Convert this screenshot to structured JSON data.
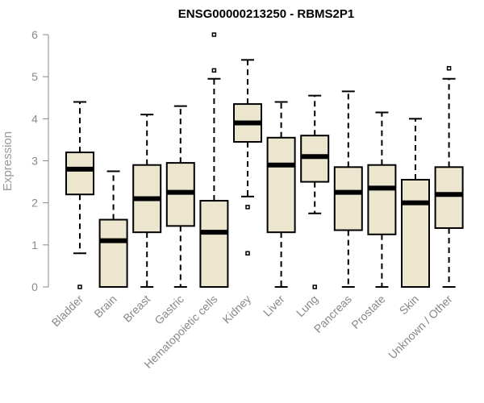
{
  "chart_data": {
    "type": "box",
    "title": "ENSG00000213250 - RBMS2P1",
    "xlabel": "",
    "ylabel": "Expression",
    "ylim": [
      0,
      6
    ],
    "yticks": [
      "0",
      "1",
      "2",
      "3",
      "4",
      "5",
      "6"
    ],
    "grid": false,
    "colors": {
      "box_fill": "#ede6cf",
      "stroke": "#000000",
      "axis": "#888888"
    },
    "categories": [
      "Bladder",
      "Brain",
      "Breast",
      "Gastric",
      "Hematopoietic cells",
      "Kidney",
      "Liver",
      "Lung",
      "Pancreas",
      "Prostate",
      "Skin",
      "Unknown / Other"
    ],
    "boxes": [
      {
        "name": "Bladder",
        "whisker_low": 0.8,
        "q1": 2.2,
        "median": 2.8,
        "q3": 3.2,
        "whisker_high": 4.4,
        "outliers": [
          0.0
        ]
      },
      {
        "name": "Brain",
        "whisker_low": 0.0,
        "q1": 0.0,
        "median": 1.1,
        "q3": 1.6,
        "whisker_high": 2.75,
        "outliers": []
      },
      {
        "name": "Breast",
        "whisker_low": 0.0,
        "q1": 1.3,
        "median": 2.1,
        "q3": 2.9,
        "whisker_high": 4.1,
        "outliers": []
      },
      {
        "name": "Gastric",
        "whisker_low": 0.0,
        "q1": 1.45,
        "median": 2.25,
        "q3": 2.95,
        "whisker_high": 4.3,
        "outliers": []
      },
      {
        "name": "Hematopoietic cells",
        "whisker_low": 0.0,
        "q1": 0.0,
        "median": 1.3,
        "q3": 2.05,
        "whisker_high": 4.95,
        "outliers": [
          5.15,
          6.0
        ]
      },
      {
        "name": "Kidney",
        "whisker_low": 2.15,
        "q1": 3.45,
        "median": 3.9,
        "q3": 4.35,
        "whisker_high": 5.4,
        "outliers": [
          1.9,
          0.8
        ]
      },
      {
        "name": "Liver",
        "whisker_low": 0.0,
        "q1": 1.3,
        "median": 2.9,
        "q3": 3.55,
        "whisker_high": 4.4,
        "outliers": []
      },
      {
        "name": "Lung",
        "whisker_low": 1.75,
        "q1": 2.5,
        "median": 3.1,
        "q3": 3.6,
        "whisker_high": 4.55,
        "outliers": [
          0.0
        ]
      },
      {
        "name": "Pancreas",
        "whisker_low": 0.0,
        "q1": 1.35,
        "median": 2.25,
        "q3": 2.85,
        "whisker_high": 4.65,
        "outliers": []
      },
      {
        "name": "Prostate",
        "whisker_low": 0.0,
        "q1": 1.25,
        "median": 2.35,
        "q3": 2.9,
        "whisker_high": 4.15,
        "outliers": []
      },
      {
        "name": "Skin",
        "whisker_low": 0.0,
        "q1": 0.0,
        "median": 2.0,
        "q3": 2.55,
        "whisker_high": 4.0,
        "outliers": []
      },
      {
        "name": "Unknown / Other",
        "whisker_low": 0.0,
        "q1": 1.4,
        "median": 2.2,
        "q3": 2.85,
        "whisker_high": 4.95,
        "outliers": [
          5.2
        ]
      }
    ]
  }
}
